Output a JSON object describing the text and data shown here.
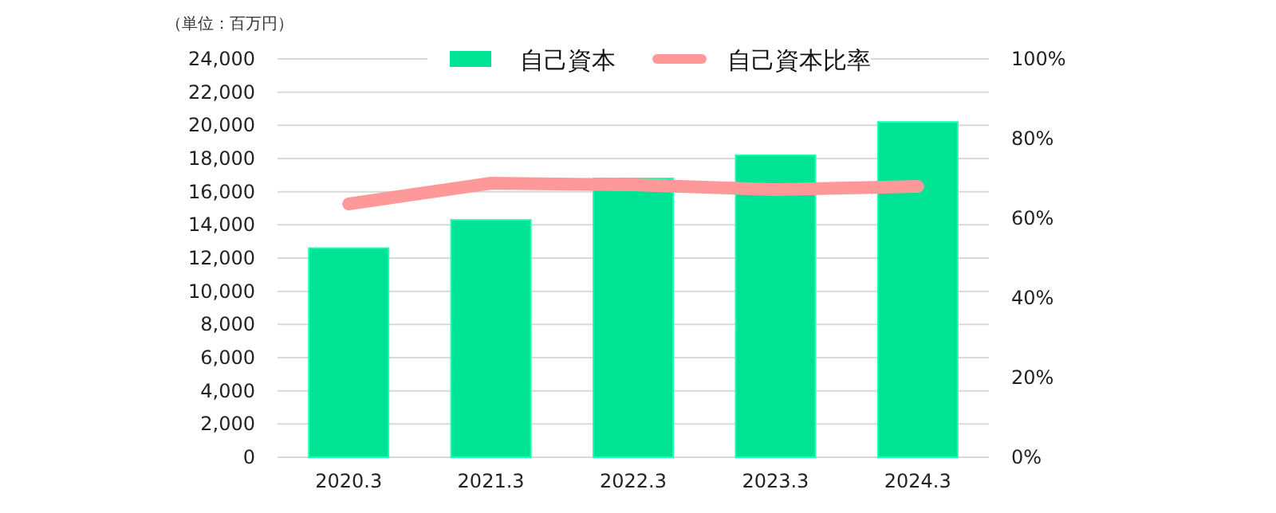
{
  "chart_data": {
    "type": "bar",
    "annotations": [
      "（単位：百万円）"
    ],
    "categories": [
      "2020.3",
      "2021.3",
      "2022.3",
      "2023.3",
      "2024.3"
    ],
    "series": [
      {
        "name": "自己資本",
        "color": "#00e394",
        "values": [
          12600,
          14300,
          16800,
          18200,
          20200
        ]
      },
      {
        "name": "自己資本比率",
        "type": "line",
        "axis": "y2",
        "color": "#ff9999",
        "values": [
          63.6,
          68.8,
          68.4,
          67.2,
          68.0
        ]
      }
    ],
    "ylim": [
      0,
      24000
    ],
    "yticks": [
      {
        "value": 0,
        "label": "0"
      },
      {
        "value": 2000,
        "label": "2,000"
      },
      {
        "value": 4000,
        "label": "4,000"
      },
      {
        "value": 6000,
        "label": "6,000"
      },
      {
        "value": 8000,
        "label": "8,000"
      },
      {
        "value": 10000,
        "label": "10,000"
      },
      {
        "value": 12000,
        "label": "12,000"
      },
      {
        "value": 14000,
        "label": "14,000"
      },
      {
        "value": 16000,
        "label": "16,000"
      },
      {
        "value": 18000,
        "label": "18,000"
      },
      {
        "value": 20000,
        "label": "20,000"
      },
      {
        "value": 22000,
        "label": "22,000"
      },
      {
        "value": 24000,
        "label": "24,000"
      }
    ],
    "y2lim": [
      0,
      100
    ],
    "y2ticks": [
      {
        "value": 0,
        "label": "0%"
      },
      {
        "value": 20,
        "label": "20%"
      },
      {
        "value": 40,
        "label": "40%"
      },
      {
        "value": 60,
        "label": "60%"
      },
      {
        "value": 80,
        "label": "80%"
      },
      {
        "value": 100,
        "label": "100%"
      }
    ],
    "grid": "y",
    "legend": "top"
  }
}
